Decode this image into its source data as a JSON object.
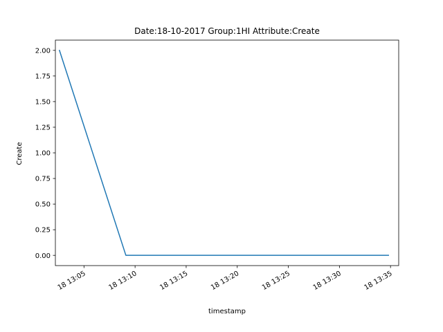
{
  "chart_data": {
    "type": "line",
    "title": "Date:18-10-2017  Group:1HI Attribute:Create",
    "xlabel": "timestamp",
    "ylabel": "Create",
    "x_ticks": [
      "18 13:05",
      "18 13:10",
      "18 13:15",
      "18 13:20",
      "18 13:25",
      "18 13:30",
      "18 13:35"
    ],
    "y_ticks": [
      "0.00",
      "0.25",
      "0.50",
      "0.75",
      "1.00",
      "1.25",
      "1.50",
      "1.75",
      "2.00"
    ],
    "ylim": [
      -0.1,
      2.1
    ],
    "xlim": [
      "2017-10-18 13:02:12",
      "2017-10-18 13:35:48"
    ],
    "grid": false,
    "series": [
      {
        "color": "#1f77b4",
        "x": [
          "2017-10-18 13:02:36",
          "2017-10-18 13:09:06",
          "2017-10-18 13:34:48"
        ],
        "values": [
          2.0,
          0.0,
          0.0
        ]
      }
    ]
  }
}
